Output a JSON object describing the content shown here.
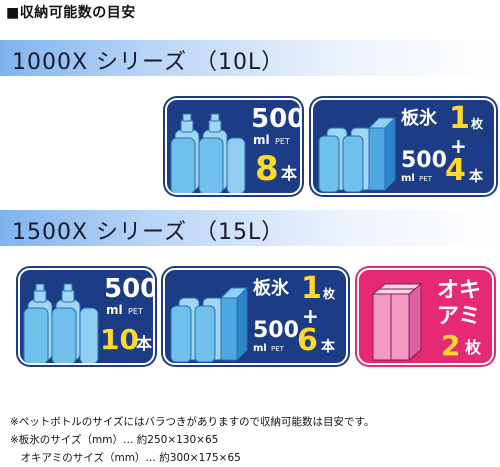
{
  "heading": "■収納可能数の目安",
  "series": [
    {
      "label": "1000X シリーズ （10L）",
      "tiles": [
        {
          "type": "pet",
          "volume": "500",
          "unit": "ml",
          "sub": "PET",
          "count": "8",
          "count_unit": "本"
        },
        {
          "type": "combo",
          "ice_label": "板氷",
          "ice_count": "1",
          "ice_unit": "枚",
          "plus": "+",
          "volume": "500",
          "unit": "ml",
          "sub": "PET",
          "count": "4",
          "count_unit": "本"
        }
      ]
    },
    {
      "label": "1500X シリーズ （15L）",
      "tiles": [
        {
          "type": "pet",
          "volume": "500",
          "unit": "ml",
          "sub": "PET",
          "count": "10",
          "count_unit": "本"
        },
        {
          "type": "combo",
          "ice_label": "板氷",
          "ice_count": "1",
          "ice_unit": "枚",
          "plus": "+",
          "volume": "500",
          "unit": "ml",
          "sub": "PET",
          "count": "6",
          "count_unit": "本"
        },
        {
          "type": "okiami",
          "label_line1": "オキ",
          "label_line2": "アミ",
          "count": "2",
          "count_unit": "枚"
        }
      ]
    }
  ],
  "footnotes": [
    "※ペットボトルのサイズにはバラつきがありますので収納可能数は目安です。",
    "※板氷のサイズ（mm）… 約250×130×65",
    "　オキアミのサイズ（mm）… 約300×175×65"
  ],
  "colors": {
    "tile_blue": "#1c3c86",
    "tile_pink": "#e52a73",
    "count_yellow": "#ffd928",
    "bottle": "#6fc0ec",
    "ice": "#4fa8e0",
    "okiami": "#f39ac4"
  }
}
